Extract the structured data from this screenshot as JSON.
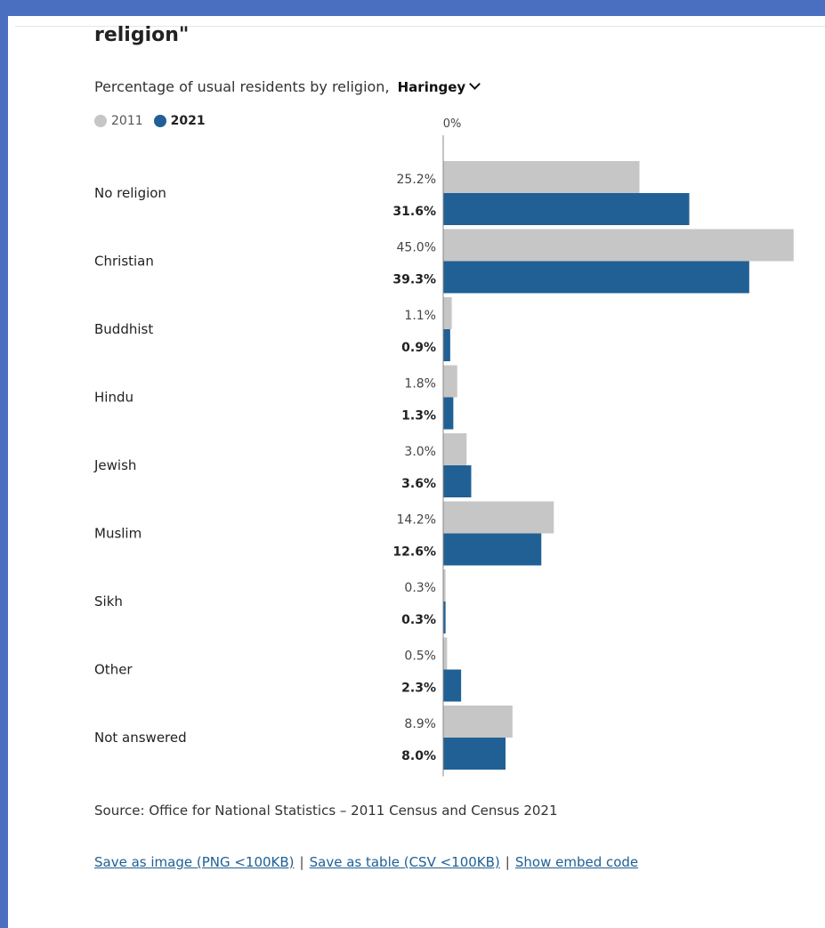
{
  "title": "religion\"",
  "subtitle": {
    "text": "Percentage of usual residents by religion,",
    "area": "Haringey"
  },
  "legend": {
    "y2011": "2011",
    "y2021": "2021"
  },
  "colors": {
    "y2011": "#c6c6c6",
    "y2021": "#206095",
    "frame": "#4a6fc1",
    "link": "#206095"
  },
  "chart_data": {
    "type": "bar",
    "orientation": "horizontal",
    "x_tick_label": "0%",
    "categories": [
      "No religion",
      "Christian",
      "Buddhist",
      "Hindu",
      "Jewish",
      "Muslim",
      "Sikh",
      "Other",
      "Not answered"
    ],
    "series": [
      {
        "name": "2011",
        "values": [
          25.2,
          45.0,
          1.1,
          1.8,
          3.0,
          14.2,
          0.3,
          0.5,
          8.9
        ],
        "labels": [
          "25.2%",
          "45.0%",
          "1.1%",
          "1.8%",
          "3.0%",
          "14.2%",
          "0.3%",
          "0.5%",
          "8.9%"
        ]
      },
      {
        "name": "2021",
        "values": [
          31.6,
          39.3,
          0.9,
          1.3,
          3.6,
          12.6,
          0.3,
          2.3,
          8.0
        ],
        "labels": [
          "31.6%",
          "39.3%",
          "0.9%",
          "1.3%",
          "3.6%",
          "12.6%",
          "0.3%",
          "2.3%",
          "8.0%"
        ]
      }
    ],
    "xlim": [
      0,
      45
    ],
    "grid": false,
    "legend_position": "top-left"
  },
  "source": "Source: Office for National Statistics – 2011 Census and Census 2021",
  "links": {
    "save_image": "Save as image (PNG <100KB)",
    "save_table": "Save as table (CSV <100KB)",
    "embed": "Show embed code",
    "separator": "|"
  }
}
